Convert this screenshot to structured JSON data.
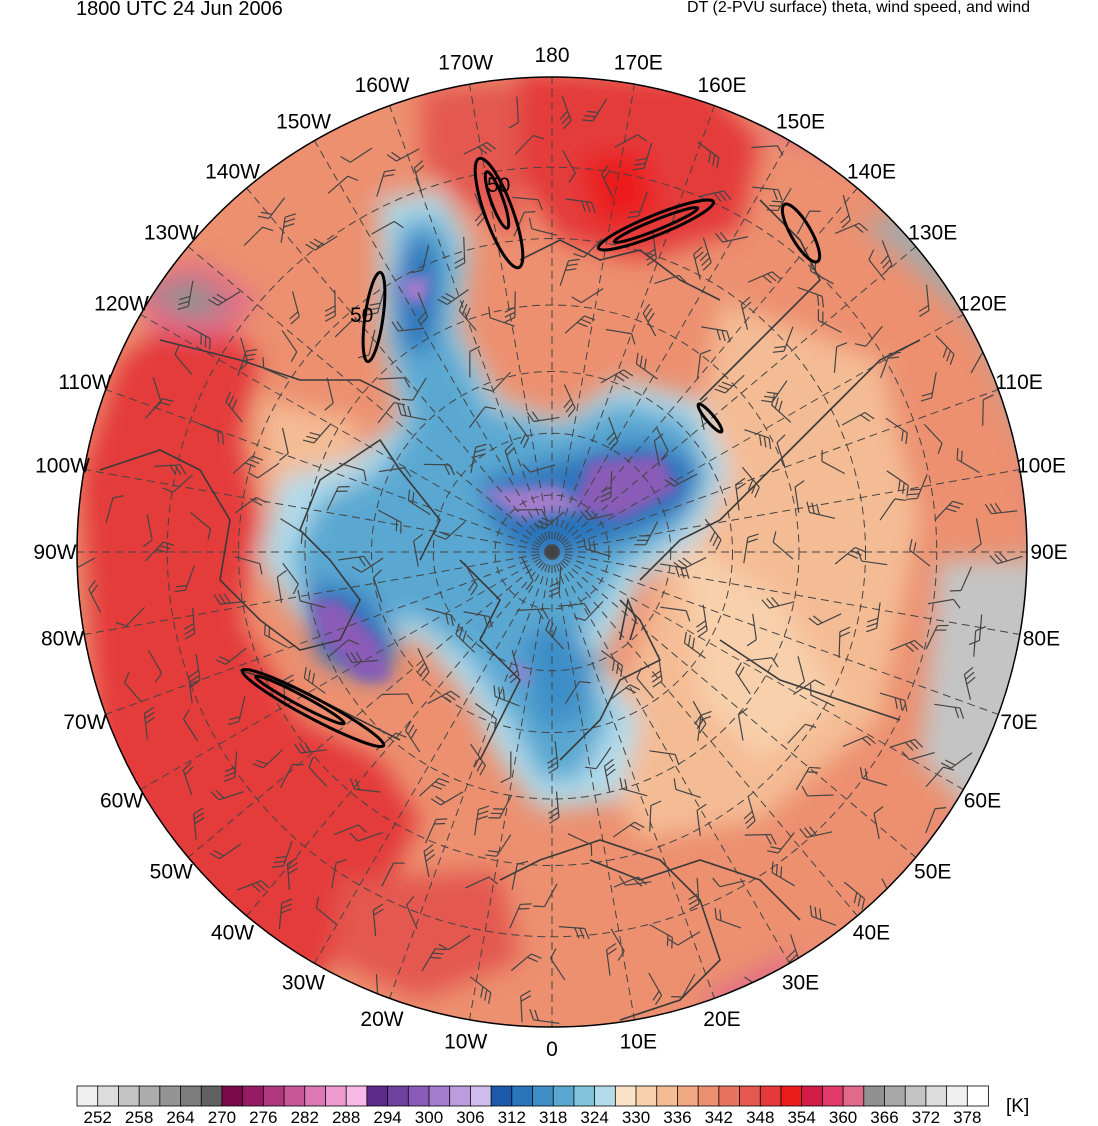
{
  "header": {
    "valid_time": "1800 UTC 24 Jun 2006",
    "product": "DT (2-PVU surface) theta, wind speed, and wind"
  },
  "map": {
    "projection": "north polar stereographic",
    "longitude_labels": [
      "180",
      "170E",
      "160E",
      "150E",
      "140E",
      "130E",
      "120E",
      "110E",
      "100E",
      "90E",
      "80E",
      "70E",
      "60E",
      "50E",
      "40E",
      "30E",
      "20E",
      "10E",
      "0",
      "10W",
      "20W",
      "30W",
      "40W",
      "50W",
      "60W",
      "70W",
      "80W",
      "90W",
      "100W",
      "110W",
      "120W",
      "130W",
      "140W",
      "150W",
      "160W",
      "170W"
    ],
    "wind_speed_contour_labels": [
      "50",
      "50"
    ]
  },
  "colorbar": {
    "unit": "[K]",
    "tick_labels": [
      "252",
      "258",
      "264",
      "270",
      "276",
      "282",
      "288",
      "294",
      "300",
      "306",
      "312",
      "318",
      "324",
      "330",
      "336",
      "342",
      "348",
      "354",
      "360",
      "366",
      "372",
      "378"
    ],
    "colors": [
      "#f0f0f0",
      "#dcdcdc",
      "#c4c4c4",
      "#acacac",
      "#949494",
      "#7c7c7c",
      "#606060",
      "#7a0a4a",
      "#951c62",
      "#b0387e",
      "#c8579a",
      "#dc78b5",
      "#ec9ad0",
      "#f8b8e6",
      "#5b2a8a",
      "#7040a0",
      "#8a5cb8",
      "#a47ccc",
      "#bc9cdc",
      "#d0bcea",
      "#1a5aa8",
      "#2a74bc",
      "#3e8ec8",
      "#5aa8d2",
      "#84c2dc",
      "#b2dcea",
      "#f8e2c8",
      "#f8d0ac",
      "#f4bc94",
      "#f0a880",
      "#ec9070",
      "#e87460",
      "#e45850",
      "#e43a3a",
      "#ec1c1c",
      "#d41c48",
      "#e43a6a",
      "#e06a8a",
      "#909090",
      "#a8a8a8",
      "#c4c4c4",
      "#dcdcdc",
      "#f0f0f0",
      "#ffffff"
    ]
  }
}
